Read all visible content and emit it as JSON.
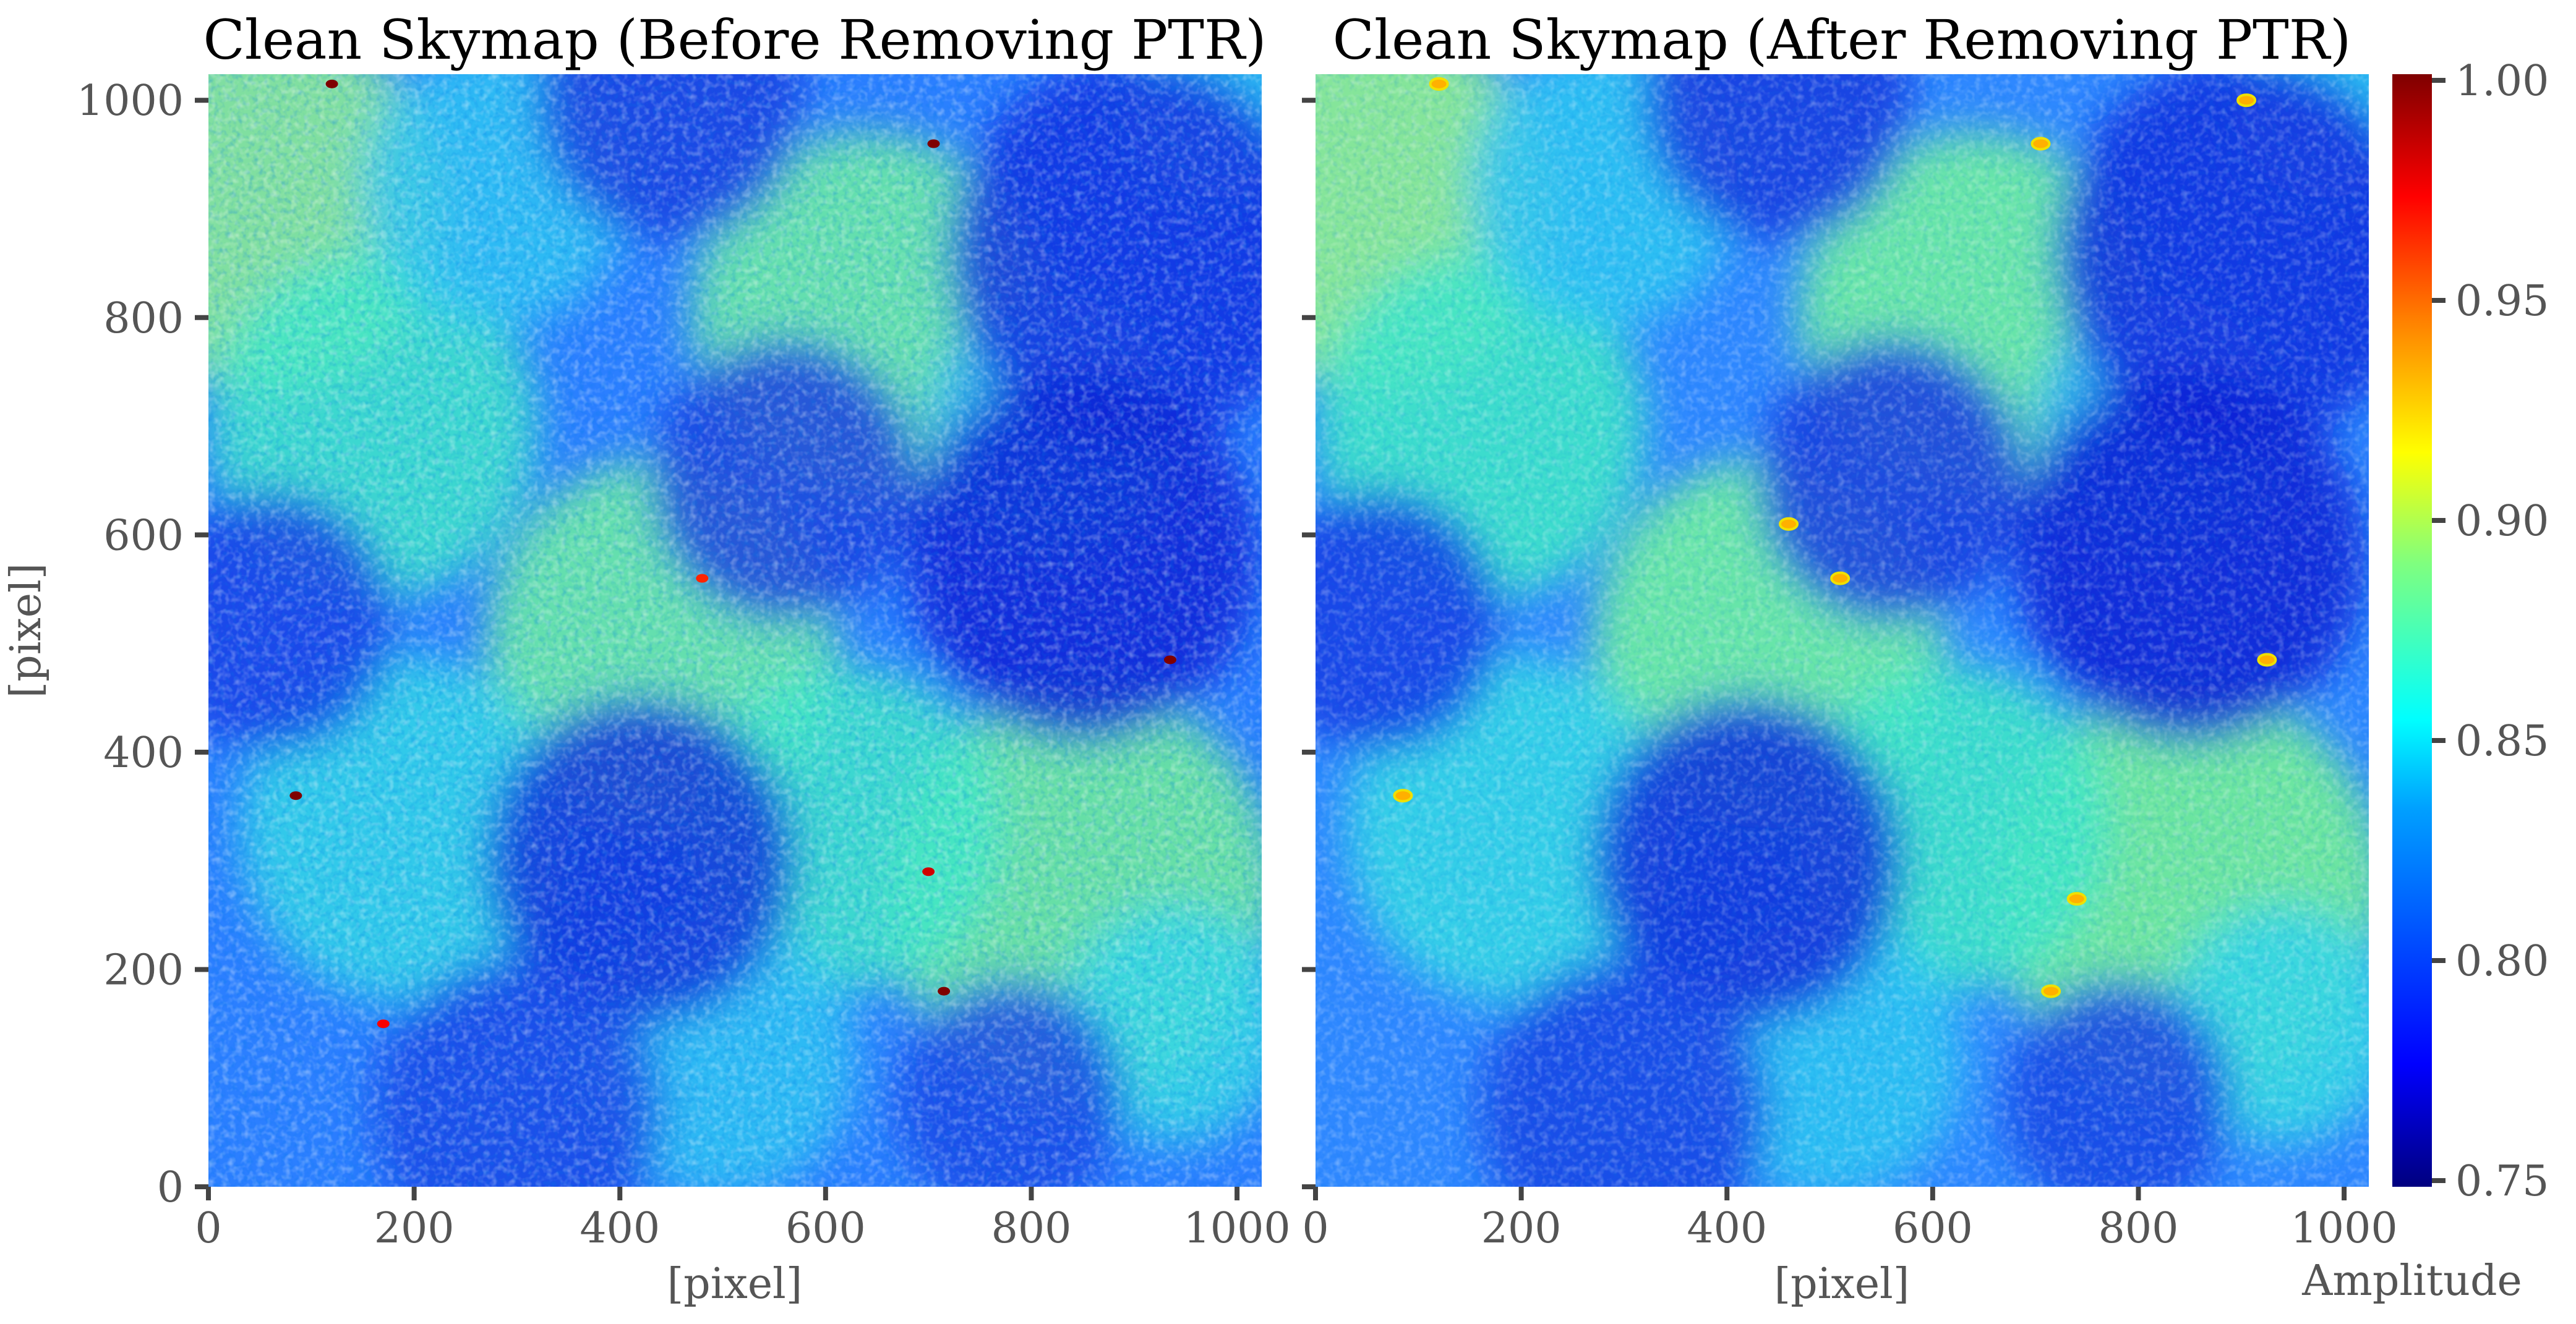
{
  "chart_data": [
    {
      "type": "heatmap",
      "title": "Clean Skymap (Before Removing PTR)",
      "xlabel": "[pixel]",
      "ylabel": "[pixel]",
      "xlim": [
        0,
        1024
      ],
      "ylim": [
        0,
        1024
      ],
      "x_ticks": [
        "0",
        "200",
        "400",
        "600",
        "800",
        "1000"
      ],
      "y_ticks": [
        "0",
        "200",
        "400",
        "600",
        "800",
        "1000"
      ],
      "colormap": "jet",
      "value_range": [
        0.75,
        1.0
      ],
      "hotspots": [
        {
          "x": 120,
          "y": 1015,
          "v": 1.0
        },
        {
          "x": 705,
          "y": 960,
          "v": 1.0
        },
        {
          "x": 935,
          "y": 485,
          "v": 1.0
        },
        {
          "x": 85,
          "y": 360,
          "v": 1.0
        },
        {
          "x": 715,
          "y": 180,
          "v": 1.0
        },
        {
          "x": 700,
          "y": 290,
          "v": 0.98
        },
        {
          "x": 170,
          "y": 150,
          "v": 0.97
        },
        {
          "x": 480,
          "y": 560,
          "v": 0.96
        }
      ]
    },
    {
      "type": "heatmap",
      "title": "Clean Skymap (After Removing PTR)",
      "xlabel": "[pixel]",
      "ylabel": "",
      "xlim": [
        0,
        1024
      ],
      "ylim": [
        0,
        1024
      ],
      "x_ticks": [
        "0",
        "200",
        "400",
        "600",
        "800",
        "1000"
      ],
      "y_ticks": [],
      "colormap": "jet",
      "value_range": [
        0.75,
        1.0
      ],
      "hotspots": [
        {
          "x": 120,
          "y": 1015,
          "v": 0.92
        },
        {
          "x": 705,
          "y": 960,
          "v": 0.93
        },
        {
          "x": 925,
          "y": 485,
          "v": 0.92
        },
        {
          "x": 85,
          "y": 360,
          "v": 0.91
        },
        {
          "x": 715,
          "y": 180,
          "v": 0.91
        },
        {
          "x": 740,
          "y": 265,
          "v": 0.9
        },
        {
          "x": 905,
          "y": 1000,
          "v": 0.9
        },
        {
          "x": 460,
          "y": 610,
          "v": 0.91
        },
        {
          "x": 510,
          "y": 560,
          "v": 0.9
        }
      ]
    }
  ],
  "colorbar": {
    "label": "Amplitude",
    "min": 0.75,
    "max": 1.0,
    "ticks": [
      "0.75",
      "0.80",
      "0.85",
      "0.90",
      "0.95",
      "1.00"
    ],
    "colormap": "jet"
  },
  "colors": {
    "jet_stops": [
      "#00007f",
      "#0000ff",
      "#007fff",
      "#00ffff",
      "#7fff7f",
      "#ffff00",
      "#ff7f00",
      "#ff0000",
      "#7f0000"
    ],
    "tick_text": "#555555",
    "title_text": "#000000"
  }
}
